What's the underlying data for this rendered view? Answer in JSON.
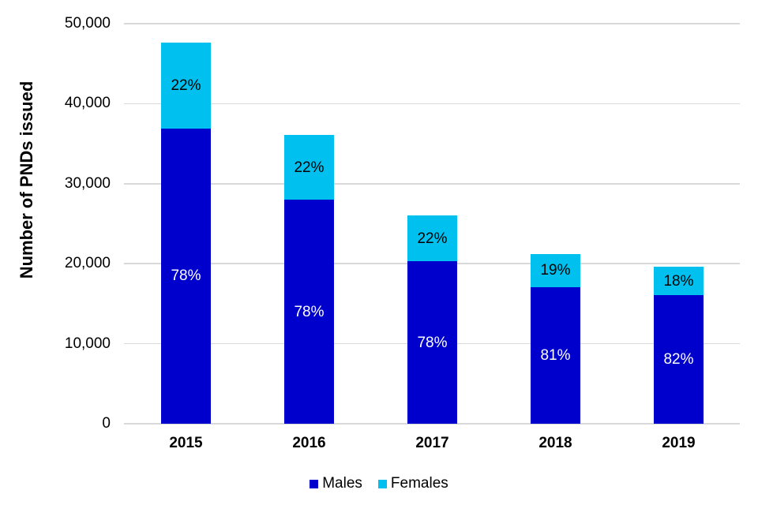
{
  "chart_data": {
    "type": "bar",
    "stacked": true,
    "title": "",
    "xlabel": "",
    "ylabel": "Number of PNDs issued",
    "categories": [
      "2015",
      "2016",
      "2017",
      "2018",
      "2019"
    ],
    "series": [
      {
        "name": "Males",
        "color": "#0000CC",
        "label_text_color": "#FFFFFF",
        "values": [
          36900,
          28000,
          20300,
          17100,
          16100
        ],
        "percent_labels": [
          "78%",
          "78%",
          "78%",
          "81%",
          "82%"
        ]
      },
      {
        "name": "Females",
        "color": "#00C0F0",
        "label_text_color": "#000000",
        "values": [
          10700,
          8100,
          5700,
          4100,
          3500
        ],
        "percent_labels": [
          "22%",
          "22%",
          "22%",
          "19%",
          "18%"
        ]
      }
    ],
    "ylim": [
      0,
      50000
    ],
    "y_ticks": [
      {
        "value": 0,
        "label": "0"
      },
      {
        "value": 10000,
        "label": "10,000"
      },
      {
        "value": 20000,
        "label": "20,000"
      },
      {
        "value": 30000,
        "label": "30,000"
      },
      {
        "value": 40000,
        "label": "40,000"
      },
      {
        "value": 50000,
        "label": "50,000"
      }
    ],
    "grid": true,
    "gridline_color": "#D9D9D9",
    "legend_position": "bottom",
    "background": "#FFFFFF"
  }
}
